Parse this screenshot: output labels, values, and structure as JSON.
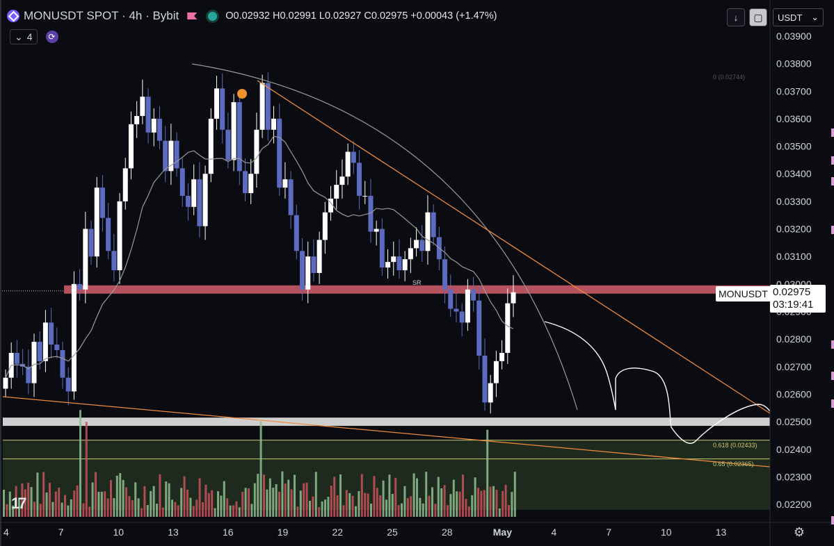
{
  "header": {
    "title": "MONUSDT SPOT · 4h · Bybit",
    "ohlc": "O0.02932 H0.02991 L0.02927 C0.02975 +0.00043 (+1.47%)",
    "indicator_count": "4"
  },
  "toolbar": {
    "currency": "USDT",
    "download_icon": "arrow-down-icon",
    "layout_icon": "rounded-square-icon"
  },
  "price_label": {
    "symbol": "MONUSDT",
    "price": "0.02975",
    "countdown": "03:19:41"
  },
  "annotations": {
    "sr": "SR",
    "fib_0": "0 (0.02744)",
    "fib_618": "0.618 (0.02433)",
    "fib_65": "0.65 (0.02365)"
  },
  "colors": {
    "background": "#0b0c12",
    "up_candle": "#ffffff",
    "down_candle": "#5c6bc0",
    "resistance_band": "#e06470",
    "support_band": "#cfcfcf",
    "trendline": "#f08a3c",
    "moving_average": "#9a9a9a",
    "projection": "#ffffff",
    "volume_up": "#8fbf8f",
    "volume_down": "#c9525a",
    "fib_zone": "#1e2a1e",
    "fib_line": "#c8c870"
  },
  "chart_data": {
    "type": "candlestick",
    "title": "MONUSDT SPOT · 4h · Bybit",
    "ylim": [
      0.0218,
      0.0391
    ],
    "yticks": [
      "0.02200",
      "0.02300",
      "0.02400",
      "0.02500",
      "0.02600",
      "0.02700",
      "0.02800",
      "0.02900",
      "0.03000",
      "0.03100",
      "0.03200",
      "0.03300",
      "0.03400",
      "0.03500",
      "0.03600",
      "0.03700",
      "0.03800",
      "0.03900"
    ],
    "xticks": [
      "4",
      "7",
      "10",
      "13",
      "16",
      "19",
      "22",
      "25",
      "28",
      "May",
      "4",
      "7",
      "10",
      "13"
    ],
    "xtick_index": [
      0,
      18,
      36,
      54,
      72,
      90,
      108,
      126,
      144,
      162,
      180,
      198,
      216,
      234
    ],
    "close": [
      0.0266,
      0.0275,
      0.0271,
      0.027,
      0.0264,
      0.0279,
      0.0272,
      0.0286,
      0.0278,
      0.0276,
      0.0266,
      0.0261,
      0.03,
      0.0298,
      0.032,
      0.031,
      0.0335,
      0.0324,
      0.0312,
      0.0305,
      0.033,
      0.0342,
      0.0358,
      0.0361,
      0.0368,
      0.0355,
      0.036,
      0.0352,
      0.0341,
      0.0352,
      0.0342,
      0.0332,
      0.0328,
      0.0338,
      0.0321,
      0.034,
      0.036,
      0.0371,
      0.0356,
      0.0345,
      0.0366,
      0.0341,
      0.0333,
      0.034,
      0.0356,
      0.0373,
      0.0356,
      0.036,
      0.0335,
      0.0338,
      0.0325,
      0.0312,
      0.0298,
      0.031,
      0.0304,
      0.0316,
      0.0326,
      0.0331,
      0.0336,
      0.0339,
      0.0348,
      0.0344,
      0.0332,
      0.0332,
      0.0319,
      0.032,
      0.0306,
      0.0308,
      0.031,
      0.0305,
      0.0309,
      0.0313,
      0.0316,
      0.0312,
      0.0326,
      0.0317,
      0.0309,
      0.0298,
      0.0291,
      0.029,
      0.0286,
      0.0298,
      0.0294,
      0.0274,
      0.0257,
      0.0264,
      0.0272,
      0.0275,
      0.0293,
      0.0297
    ],
    "series": [
      {
        "name": "MONUSDT",
        "values": "see close"
      }
    ],
    "levels": {
      "resistance_band": [
        0.02965,
        0.02995
      ],
      "support_band": [
        0.02485,
        0.02515
      ],
      "fib_0": 0.02744,
      "fib_618": 0.02433,
      "fib_65": 0.02365
    },
    "current_price": 0.02975
  }
}
